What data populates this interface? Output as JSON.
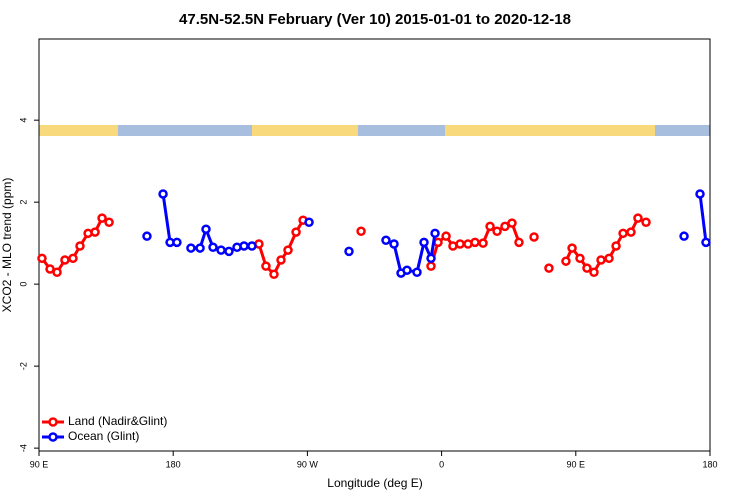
{
  "chart_data": {
    "type": "line",
    "title": "47.5N-52.5N February (Ver 10)   2015-01-01 to 2020-12-18",
    "x_label": "Longitude (deg E)",
    "y_label": "XCO2 - MLO trend (ppm)",
    "xlim": [
      90,
      540
    ],
    "xticks": [
      90,
      180,
      {
        "value": 270,
        "label": "90 W"
      },
      {
        "value": 360,
        "label": "0"
      },
      {
        "value": 450,
        "label": "90 E"
      },
      {
        "value": 540,
        "label": "180"
      }
    ],
    "xtick0_label": "90 E",
    "ylim": [
      -4.07,
      5.98
    ],
    "yticks": [
      -4,
      -2,
      0,
      2,
      4
    ],
    "legend": "bottom-left",
    "series": [
      {
        "name": "Land (Nadir&Glint)",
        "color": "#ff0000",
        "x": [
          92.0,
          97.4,
          102.1,
          107.4,
          112.8,
          117.5,
          122.9,
          127.6,
          132.3,
          137.0,
          null,
          237.5,
          242.2,
          247.6,
          252.3,
          257.0,
          262.4,
          267.1,
          null,
          306.0,
          null,
          352.9,
          357.6,
          363.0,
          367.6,
          372.4,
          377.7,
          382.4,
          387.8,
          392.5,
          397.2,
          402.5,
          407.2,
          411.9,
          null,
          422.0,
          null,
          432.0,
          null,
          443.4,
          447.5,
          452.8,
          457.5,
          462.2,
          466.9,
          472.3,
          477.0,
          481.7,
          487.0,
          491.7,
          497.1
        ],
        "values": [
          0.63,
          0.37,
          0.29,
          0.59,
          0.63,
          0.93,
          1.24,
          1.27,
          1.61,
          1.51,
          null,
          0.98,
          0.44,
          0.24,
          0.59,
          0.83,
          1.27,
          1.56,
          null,
          1.29,
          null,
          0.44,
          1.02,
          1.17,
          0.93,
          0.98,
          0.98,
          1.02,
          1.0,
          1.41,
          1.29,
          1.41,
          1.49,
          1.02,
          null,
          1.15,
          null,
          0.39,
          null,
          0.56,
          0.88,
          0.63,
          0.39,
          0.29,
          0.59,
          0.63,
          0.93,
          1.24,
          1.27,
          1.61,
          1.51
        ]
      },
      {
        "name": "Ocean (Glint)",
        "color": "#0000ff",
        "x": [
          162.4,
          null,
          173.2,
          177.9,
          182.5,
          null,
          191.9,
          198.0,
          202.0,
          206.7,
          212.1,
          217.4,
          222.8,
          227.5,
          232.8,
          null,
          271.1,
          null,
          297.9,
          null,
          322.7,
          328.1,
          332.8,
          336.8,
          343.5,
          348.2,
          352.9,
          355.6,
          null,
          522.6,
          null,
          533.3,
          537.3
        ],
        "values": [
          1.17,
          null,
          2.2,
          1.02,
          1.02,
          null,
          0.88,
          0.88,
          1.34,
          0.9,
          0.83,
          0.8,
          0.9,
          0.93,
          0.93,
          null,
          1.51,
          null,
          0.8,
          null,
          1.07,
          0.98,
          0.27,
          0.34,
          0.29,
          1.02,
          0.63,
          1.24,
          null,
          1.17,
          null,
          2.2,
          1.02
        ]
      }
    ]
  }
}
